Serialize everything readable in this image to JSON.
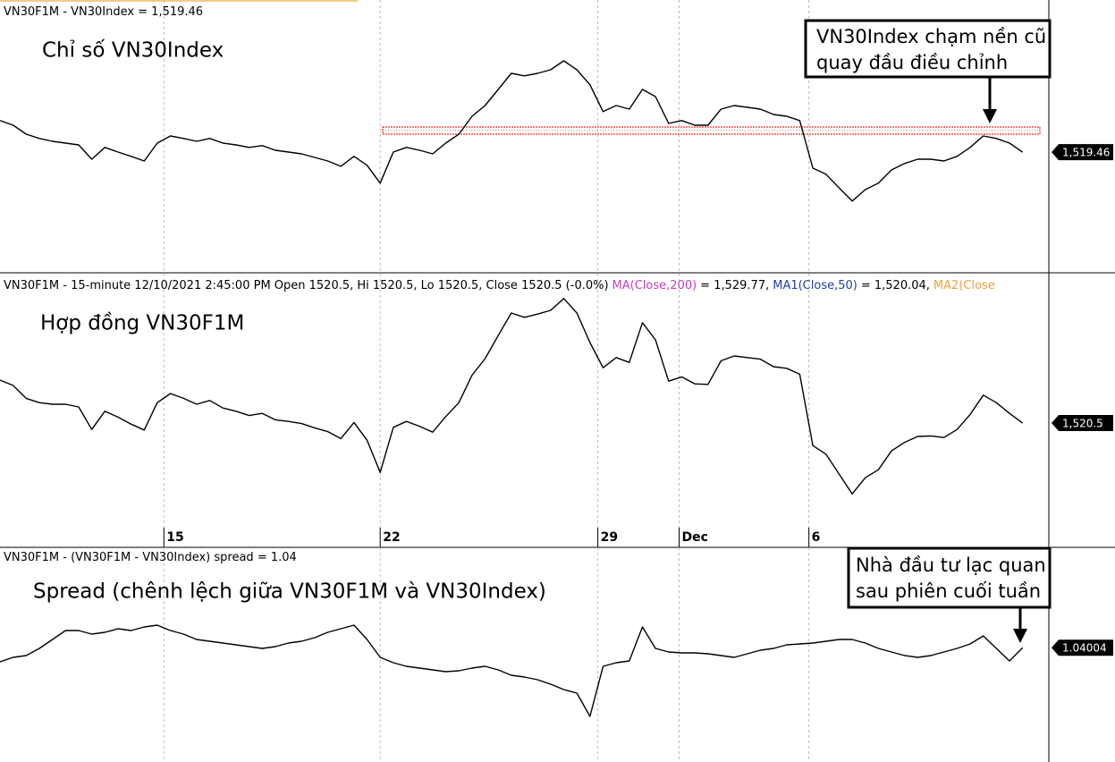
{
  "chart_data": [
    {
      "type": "line",
      "header": "VN30F1M - VN30Index = 1,519.46",
      "title": "Chỉ số VN30Index",
      "color": "#000000",
      "xlim": [
        0,
        80
      ],
      "ylim": [
        1487,
        1557
      ],
      "values": [
        1528.3,
        1527,
        1524.5,
        1523.3,
        1522.5,
        1522,
        1521.5,
        1517.5,
        1520.8,
        1519.5,
        1518.3,
        1517,
        1522,
        1524,
        1523.3,
        1522.5,
        1523.3,
        1522,
        1521.5,
        1520.8,
        1521.3,
        1520,
        1519.5,
        1519,
        1518,
        1517,
        1515.5,
        1518.3,
        1515.8,
        1510.8,
        1519.5,
        1520.8,
        1520,
        1519,
        1522,
        1524.5,
        1529.5,
        1532.5,
        1537,
        1541.5,
        1540.8,
        1541.5,
        1542.5,
        1545,
        1542.5,
        1538.3,
        1530.8,
        1532.5,
        1531.5,
        1537,
        1535,
        1527.5,
        1528.3,
        1527,
        1527,
        1531.5,
        1532.5,
        1532,
        1531.5,
        1530,
        1529.5,
        1528.3,
        1515,
        1513.3,
        1509.5,
        1505.8,
        1509,
        1510.8,
        1514.5,
        1516.3,
        1517.5,
        1517.5,
        1517,
        1518.3,
        1520.8,
        1524,
        1523.3,
        1522,
        1519.46
      ],
      "last_price": {
        "value": 1519.46,
        "label": "1,519.46"
      },
      "support_level": 1525.5,
      "support_color": "#e03030",
      "annotation": [
        "VN30Index chạm nền cũ",
        "quay đầu điều chỉnh"
      ]
    },
    {
      "type": "line",
      "header": "VN30F1M - 15-minute 12/10/2021 2:45:00 PM Open 1520.5, Hi 1520.5, Lo 1520.5, Close 1520.5 (-0.0%)",
      "indicators": [
        {
          "name": "MA(Close,200)",
          "color": "#c040c0",
          "text": "= 1,529.77,"
        },
        {
          "name": "MA1(Close,50)",
          "color": "#2040a0",
          "text": "= 1,520.04,"
        },
        {
          "name": "MA2(Close",
          "color": "#f0a040"
        }
      ],
      "title": "Hợp đồng VN30F1M",
      "color": "#000000",
      "xlim": [
        0,
        80
      ],
      "ylim": [
        1501,
        1546
      ],
      "xticks": [
        {
          "value": 12.5,
          "label": "15"
        },
        {
          "value": 29,
          "label": "22"
        },
        {
          "value": 45.6,
          "label": "29"
        },
        {
          "value": 51.8,
          "label": "Dec"
        },
        {
          "value": 61.7,
          "label": "6"
        }
      ],
      "values": [
        1528.5,
        1527.5,
        1525.1,
        1524.3,
        1524.0,
        1524.0,
        1523.5,
        1519.3,
        1522.7,
        1521.6,
        1520.3,
        1519.2,
        1524.3,
        1526.0,
        1525.1,
        1524.0,
        1524.7,
        1523.3,
        1522.7,
        1521.9,
        1522.3,
        1521.1,
        1520.8,
        1520.4,
        1519.6,
        1518.9,
        1517.6,
        1520.6,
        1517.3,
        1511.3,
        1519.7,
        1520.8,
        1519.9,
        1518.8,
        1521.7,
        1524.3,
        1529.4,
        1532.5,
        1536.8,
        1541.0,
        1540.2,
        1540.8,
        1541.5,
        1543.7,
        1541.0,
        1535.5,
        1530.8,
        1532.7,
        1531.8,
        1539.2,
        1536.0,
        1528.3,
        1529.1,
        1527.8,
        1527.7,
        1532.1,
        1533.0,
        1532.7,
        1532.4,
        1531.0,
        1530.7,
        1529.6,
        1516.3,
        1514.7,
        1511.0,
        1507.3,
        1510.3,
        1511.8,
        1515.3,
        1516.9,
        1518.0,
        1518.1,
        1517.8,
        1519.3,
        1522.1,
        1525.7,
        1524.3,
        1522.3,
        1520.5
      ],
      "last_price": {
        "value": 1520.5,
        "label": "1,520.5"
      }
    },
    {
      "type": "line",
      "header": "VN30F1M - (VN30F1M - VN30Index) spread = 1.04",
      "title": "Spread (chênh lệch giữa VN30F1M và VN30Index)",
      "color": "#000000",
      "xlim": [
        0,
        80
      ],
      "ylim": [
        -5,
        5.5
      ],
      "values": [
        0.25,
        0.5,
        0.6,
        1.0,
        1.5,
        2.0,
        2.0,
        1.8,
        1.9,
        2.1,
        2.0,
        2.2,
        2.3,
        2.0,
        1.8,
        1.5,
        1.4,
        1.3,
        1.2,
        1.1,
        1.0,
        1.1,
        1.3,
        1.4,
        1.6,
        1.9,
        2.1,
        2.3,
        1.5,
        0.5,
        0.2,
        0,
        -0.1,
        -0.2,
        -0.3,
        -0.25,
        -0.1,
        0,
        -0.2,
        -0.5,
        -0.6,
        -0.75,
        -1.0,
        -1.3,
        -1.5,
        -2.8,
        0,
        0.2,
        0.3,
        2.2,
        1.0,
        0.8,
        0.75,
        0.75,
        0.7,
        0.6,
        0.5,
        0.7,
        0.9,
        1.0,
        1.2,
        1.25,
        1.3,
        1.4,
        1.5,
        1.5,
        1.3,
        1.0,
        0.8,
        0.6,
        0.5,
        0.6,
        0.8,
        1.0,
        1.25,
        1.7,
        1.0,
        0.3,
        1.04004
      ],
      "last_price": {
        "value": 1.04004,
        "label": "1.04004"
      },
      "annotation": [
        "Nhà đầu tư lạc quan",
        "sau phiên cuối tuần"
      ]
    }
  ]
}
